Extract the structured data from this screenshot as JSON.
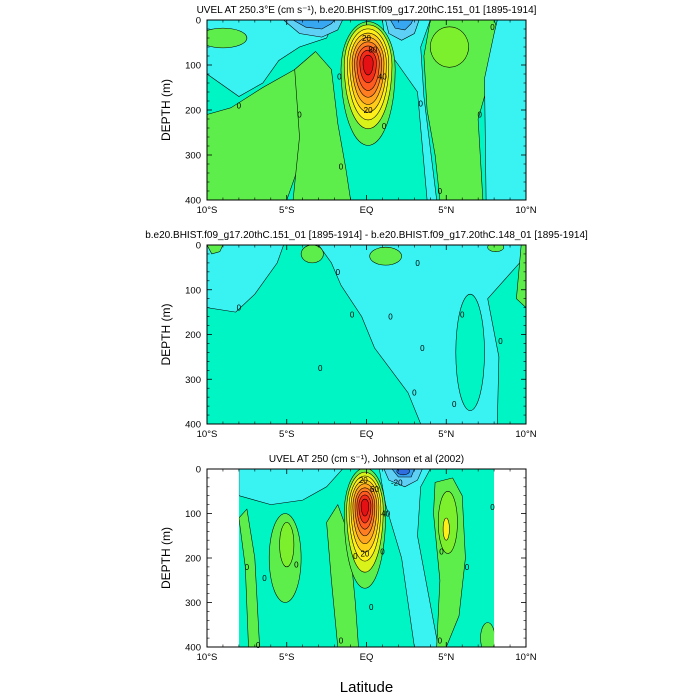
{
  "figure": {
    "x_axis_title": "Latitude"
  },
  "chart_data": [
    {
      "type": "contour",
      "title": "UVEL AT 250.3°E (cm s⁻¹), b.e20.BHIST.f09_g17.20thC.151_01 [1895-1914]",
      "xlabel": "",
      "ylabel": "DEPTH (m)",
      "xlim": [
        -10,
        10
      ],
      "ylim": [
        400,
        0
      ],
      "y_reversed": true,
      "xticks": [
        -10,
        -5,
        0,
        5,
        10
      ],
      "xticklabels": [
        "10°S",
        "5°S",
        "EQ",
        "5°N",
        "10°N"
      ],
      "yticks": [
        0,
        100,
        200,
        300,
        400
      ],
      "yticklabels": [
        "0",
        "100",
        "200",
        "300",
        "400"
      ],
      "contour_labels": [
        {
          "lat": -8.0,
          "depth": 190,
          "text": "0"
        },
        {
          "lat": -4.2,
          "depth": 210,
          "text": "0"
        },
        {
          "lat": -1.7,
          "depth": 125,
          "text": "0"
        },
        {
          "lat": -1.6,
          "depth": 325,
          "text": "0"
        },
        {
          "lat": 0.0,
          "depth": 40,
          "text": "20"
        },
        {
          "lat": 0.4,
          "depth": 65,
          "text": "80"
        },
        {
          "lat": 1.0,
          "depth": 125,
          "text": "40"
        },
        {
          "lat": 0.1,
          "depth": 200,
          "text": "20"
        },
        {
          "lat": 1.1,
          "depth": 235,
          "text": "0"
        },
        {
          "lat": 3.4,
          "depth": 185,
          "text": "0"
        },
        {
          "lat": 4.6,
          "depth": 380,
          "text": "0"
        },
        {
          "lat": 7.1,
          "depth": 210,
          "text": "0"
        },
        {
          "lat": 7.9,
          "depth": 15,
          "text": "0"
        }
      ],
      "features": [
        {
          "name": "Equatorial Undercurrent core",
          "lat": 0.0,
          "depth": 95,
          "max_value": 100
        }
      ]
    },
    {
      "type": "contour",
      "title": "b.e20.BHIST.f09_g17.20thC.151_01 [1895-1914] - b.e20.BHIST.f09_g17.20thC.148_01 [1895-1914]",
      "xlabel": "",
      "ylabel": "DEPTH (m)",
      "xlim": [
        -10,
        10
      ],
      "ylim": [
        400,
        0
      ],
      "y_reversed": true,
      "xticks": [
        -10,
        -5,
        0,
        5,
        10
      ],
      "xticklabels": [
        "10°S",
        "5°S",
        "EQ",
        "5°N",
        "10°N"
      ],
      "yticks": [
        0,
        100,
        200,
        300,
        400
      ],
      "yticklabels": [
        "0",
        "100",
        "200",
        "300",
        "400"
      ],
      "contour_labels": [
        {
          "lat": -8.0,
          "depth": 140,
          "text": "0"
        },
        {
          "lat": -1.8,
          "depth": 60,
          "text": "0"
        },
        {
          "lat": -0.9,
          "depth": 155,
          "text": "0"
        },
        {
          "lat": -2.9,
          "depth": 275,
          "text": "0"
        },
        {
          "lat": 1.5,
          "depth": 160,
          "text": "0"
        },
        {
          "lat": 3.2,
          "depth": 40,
          "text": "0"
        },
        {
          "lat": 3.5,
          "depth": 230,
          "text": "0"
        },
        {
          "lat": 3.0,
          "depth": 330,
          "text": "0"
        },
        {
          "lat": 5.5,
          "depth": 355,
          "text": "0"
        },
        {
          "lat": 6.0,
          "depth": 155,
          "text": "0"
        },
        {
          "lat": 8.4,
          "depth": 215,
          "text": "0"
        }
      ]
    },
    {
      "type": "contour",
      "title": "UVEL AT 250 (cm s⁻¹), Johnson et al (2002)",
      "xlabel": "Latitude",
      "ylabel": "DEPTH (m)",
      "xlim": [
        -10,
        10
      ],
      "ylim": [
        400,
        0
      ],
      "y_reversed": true,
      "xticks": [
        -10,
        -5,
        0,
        5,
        10
      ],
      "xticklabels": [
        "10°S",
        "5°S",
        "EQ",
        "5°N",
        "10°N"
      ],
      "yticks": [
        0,
        100,
        200,
        300,
        400
      ],
      "yticklabels": [
        "0",
        "100",
        "200",
        "300",
        "400"
      ],
      "data_coverage": {
        "lat_min": -8,
        "lat_max": 8
      },
      "contour_labels": [
        {
          "lat": -7.5,
          "depth": 220,
          "text": "0"
        },
        {
          "lat": -6.4,
          "depth": 245,
          "text": "0"
        },
        {
          "lat": -4.4,
          "depth": 215,
          "text": "0"
        },
        {
          "lat": -6.8,
          "depth": 395,
          "text": "0"
        },
        {
          "lat": -1.6,
          "depth": 385,
          "text": "0"
        },
        {
          "lat": -0.2,
          "depth": 25,
          "text": "20"
        },
        {
          "lat": 0.5,
          "depth": 45,
          "text": "60"
        },
        {
          "lat": 1.2,
          "depth": 100,
          "text": "40"
        },
        {
          "lat": -0.7,
          "depth": 195,
          "text": "0"
        },
        {
          "lat": -0.1,
          "depth": 190,
          "text": "20"
        },
        {
          "lat": 1.0,
          "depth": 185,
          "text": "0"
        },
        {
          "lat": 0.3,
          "depth": 310,
          "text": "0"
        },
        {
          "lat": 1.9,
          "depth": 30,
          "text": "-20"
        },
        {
          "lat": 4.7,
          "depth": 185,
          "text": "0"
        },
        {
          "lat": 6.3,
          "depth": 220,
          "text": "0"
        },
        {
          "lat": 7.9,
          "depth": 85,
          "text": "0"
        },
        {
          "lat": 4.6,
          "depth": 385,
          "text": "0"
        }
      ],
      "features": [
        {
          "name": "Equatorial Undercurrent core",
          "lat": 0.0,
          "depth": 85,
          "max_value": 100
        }
      ]
    }
  ]
}
